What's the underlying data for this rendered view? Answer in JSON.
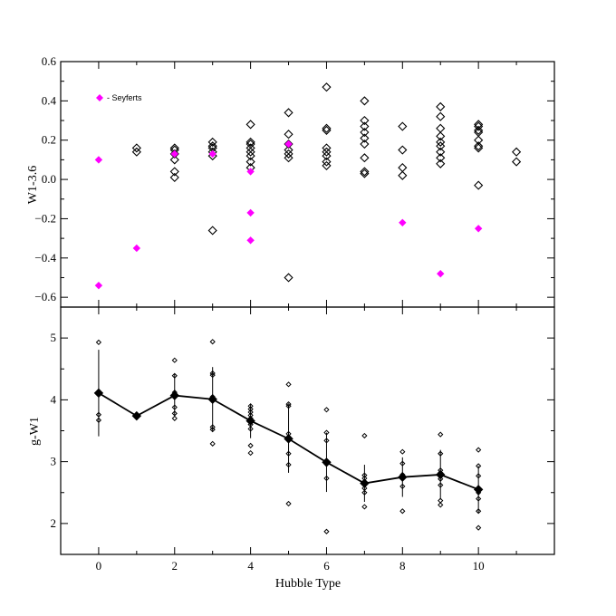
{
  "chart_data": [
    {
      "type": "scatter",
      "panel": "top",
      "ylabel": "W1-3.6",
      "xlim": [
        -1,
        12
      ],
      "ylim": [
        -0.65,
        0.6
      ],
      "x_ticks": [
        0,
        2,
        4,
        6,
        8,
        10
      ],
      "y_ticks": [
        -0.6,
        -0.4,
        -0.2,
        0.0,
        0.2,
        0.4,
        0.6
      ],
      "y_tick_labels": [
        "−0.6",
        "−0.4",
        "−0.2",
        "0.0",
        "0.2",
        "0.4",
        "0.6"
      ],
      "legend": {
        "label": "- Seyferts",
        "placement": "top-left",
        "marker_color": "#ff00ff"
      },
      "series": [
        {
          "marker": "open-diamond",
          "color": "#000000",
          "points": [
            [
              1,
              0.16
            ],
            [
              1,
              0.14
            ],
            [
              2,
              0.16
            ],
            [
              2,
              0.15
            ],
            [
              2,
              0.13
            ],
            [
              2,
              0.1
            ],
            [
              2,
              0.04
            ],
            [
              2,
              0.01
            ],
            [
              3,
              0.19
            ],
            [
              3,
              0.17
            ],
            [
              3,
              0.16
            ],
            [
              3,
              0.14
            ],
            [
              3,
              0.12
            ],
            [
              3,
              -0.26
            ],
            [
              4,
              0.28
            ],
            [
              4,
              0.19
            ],
            [
              4,
              0.18
            ],
            [
              4,
              0.16
            ],
            [
              4,
              0.14
            ],
            [
              4,
              0.12
            ],
            [
              4,
              0.09
            ],
            [
              4,
              0.06
            ],
            [
              5,
              0.34
            ],
            [
              5,
              0.23
            ],
            [
              5,
              0.18
            ],
            [
              5,
              0.15
            ],
            [
              5,
              0.13
            ],
            [
              5,
              0.11
            ],
            [
              5,
              -0.5
            ],
            [
              6,
              0.47
            ],
            [
              6,
              0.26
            ],
            [
              6,
              0.25
            ],
            [
              6,
              0.16
            ],
            [
              6,
              0.14
            ],
            [
              6,
              0.12
            ],
            [
              6,
              0.09
            ],
            [
              6,
              0.07
            ],
            [
              7,
              0.4
            ],
            [
              7,
              0.3
            ],
            [
              7,
              0.27
            ],
            [
              7,
              0.24
            ],
            [
              7,
              0.21
            ],
            [
              7,
              0.18
            ],
            [
              7,
              0.11
            ],
            [
              7,
              0.04
            ],
            [
              7,
              0.03
            ],
            [
              8,
              0.27
            ],
            [
              8,
              0.15
            ],
            [
              8,
              0.06
            ],
            [
              8,
              0.02
            ],
            [
              9,
              0.37
            ],
            [
              9,
              0.32
            ],
            [
              9,
              0.26
            ],
            [
              9,
              0.22
            ],
            [
              9,
              0.19
            ],
            [
              9,
              0.17
            ],
            [
              9,
              0.14
            ],
            [
              9,
              0.11
            ],
            [
              9,
              0.08
            ],
            [
              10,
              0.28
            ],
            [
              10,
              0.27
            ],
            [
              10,
              0.25
            ],
            [
              10,
              0.24
            ],
            [
              10,
              0.2
            ],
            [
              10,
              0.17
            ],
            [
              10,
              0.16
            ],
            [
              10,
              -0.03
            ],
            [
              11,
              0.14
            ],
            [
              11,
              0.09
            ]
          ]
        },
        {
          "name": "- Seyferts",
          "marker": "filled-diamond",
          "color": "#ff00ff",
          "points": [
            [
              0,
              0.1
            ],
            [
              0,
              -0.54
            ],
            [
              1,
              -0.35
            ],
            [
              2,
              0.13
            ],
            [
              3,
              0.13
            ],
            [
              4,
              0.04
            ],
            [
              4,
              -0.17
            ],
            [
              4,
              -0.31
            ],
            [
              5,
              0.18
            ],
            [
              8,
              -0.22
            ],
            [
              9,
              -0.48
            ],
            [
              10,
              -0.25
            ]
          ]
        }
      ]
    },
    {
      "type": "line",
      "panel": "bottom",
      "xlabel": "Hubble Type",
      "ylabel": "g-W1",
      "xlim": [
        -1,
        12
      ],
      "ylim": [
        1.5,
        5.5
      ],
      "x_ticks": [
        0,
        2,
        4,
        6,
        8,
        10
      ],
      "x_tick_labels": [
        "0",
        "2",
        "4",
        "6",
        "8",
        "10"
      ],
      "y_ticks": [
        2,
        3,
        4,
        5
      ],
      "y_tick_labels": [
        "2",
        "3",
        "4",
        "5"
      ],
      "individual_points": [
        [
          0,
          4.93
        ],
        [
          0,
          4.12
        ],
        [
          0,
          3.76
        ],
        [
          0,
          3.67
        ],
        [
          1,
          3.74
        ],
        [
          2,
          4.64
        ],
        [
          2,
          4.39
        ],
        [
          2,
          4.12
        ],
        [
          2,
          4.05
        ],
        [
          2,
          3.88
        ],
        [
          2,
          3.78
        ],
        [
          2,
          3.7
        ],
        [
          3,
          4.94
        ],
        [
          3,
          4.43
        ],
        [
          3,
          4.4
        ],
        [
          3,
          4.05
        ],
        [
          3,
          3.98
        ],
        [
          3,
          3.56
        ],
        [
          3,
          3.52
        ],
        [
          3,
          3.29
        ],
        [
          4,
          3.9
        ],
        [
          4,
          3.85
        ],
        [
          4,
          3.8
        ],
        [
          4,
          3.75
        ],
        [
          4,
          3.7
        ],
        [
          4,
          3.66
        ],
        [
          4,
          3.6
        ],
        [
          4,
          3.53
        ],
        [
          4,
          3.26
        ],
        [
          4,
          3.14
        ],
        [
          5,
          4.25
        ],
        [
          5,
          3.93
        ],
        [
          5,
          3.9
        ],
        [
          5,
          3.45
        ],
        [
          5,
          3.4
        ],
        [
          5,
          3.35
        ],
        [
          5,
          3.13
        ],
        [
          5,
          2.95
        ],
        [
          5,
          2.32
        ],
        [
          6,
          3.84
        ],
        [
          6,
          3.47
        ],
        [
          6,
          3.34
        ],
        [
          6,
          3.0
        ],
        [
          6,
          2.96
        ],
        [
          6,
          2.73
        ],
        [
          6,
          1.87
        ],
        [
          7,
          3.42
        ],
        [
          7,
          2.78
        ],
        [
          7,
          2.73
        ],
        [
          7,
          2.64
        ],
        [
          7,
          2.57
        ],
        [
          7,
          2.5
        ],
        [
          7,
          2.27
        ],
        [
          8,
          3.16
        ],
        [
          8,
          2.97
        ],
        [
          8,
          2.79
        ],
        [
          8,
          2.6
        ],
        [
          8,
          2.2
        ],
        [
          9,
          3.44
        ],
        [
          9,
          3.13
        ],
        [
          9,
          2.86
        ],
        [
          9,
          2.82
        ],
        [
          9,
          2.72
        ],
        [
          9,
          2.62
        ],
        [
          9,
          2.37
        ],
        [
          9,
          2.3
        ],
        [
          10,
          3.19
        ],
        [
          10,
          2.93
        ],
        [
          10,
          2.77
        ],
        [
          10,
          2.56
        ],
        [
          10,
          2.5
        ],
        [
          10,
          2.4
        ],
        [
          10,
          2.2
        ],
        [
          10,
          1.93
        ]
      ],
      "mean_series": {
        "x": [
          0,
          1,
          2,
          3,
          4,
          5,
          6,
          7,
          8,
          9,
          10
        ],
        "y": [
          4.11,
          3.74,
          4.07,
          4.01,
          3.66,
          3.37,
          2.99,
          2.65,
          2.75,
          2.79,
          2.55
        ],
        "error": [
          0.7,
          0.0,
          0.35,
          0.52,
          0.28,
          0.55,
          0.48,
          0.3,
          0.32,
          0.4,
          0.38
        ]
      }
    }
  ]
}
